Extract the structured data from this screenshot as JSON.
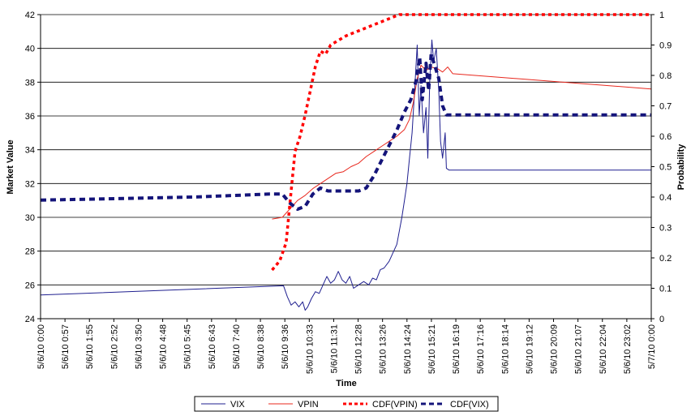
{
  "chart_data": {
    "type": "line",
    "xlabel": "Time",
    "ylabel_left": "Market Value",
    "ylabel_right": "Probability",
    "ylim_left": [
      24,
      42
    ],
    "ylim_right": [
      0,
      1
    ],
    "yticks_left": [
      "24",
      "26",
      "28",
      "30",
      "32",
      "34",
      "36",
      "38",
      "40",
      "42"
    ],
    "yticks_right": [
      "0",
      "0.1",
      "0.2",
      "0.3",
      "0.4",
      "0.5",
      "0.6",
      "0.7",
      "0.8",
      "0.9",
      "1"
    ],
    "x_tick_labels": [
      "5/6/10 0:00",
      "5/6/10 0:57",
      "5/6/10 1:55",
      "5/6/10 2:52",
      "5/6/10 3:50",
      "5/6/10 4:48",
      "5/6/10 5:45",
      "5/6/10 6:43",
      "5/6/10 7:40",
      "5/6/10 8:38",
      "5/6/10 9:36",
      "5/6/10 10:33",
      "5/6/10 11:31",
      "5/6/10 12:28",
      "5/6/10 13:26",
      "5/6/10 14:24",
      "5/6/10 15:21",
      "5/6/10 16:19",
      "5/6/10 17:16",
      "5/6/10 18:14",
      "5/6/10 19:12",
      "5/6/10 20:09",
      "5/6/10 21:07",
      "5/6/10 22:04",
      "5/6/10 23:02",
      "5/7/10 0:00"
    ],
    "x_unit": "hours since 5/6/10 0:00",
    "x_range": [
      0,
      24
    ],
    "grid": "horizontal",
    "legend_position": "bottom",
    "series": [
      {
        "name": "VIX",
        "axis": "left",
        "color": "#1f1f8f",
        "style": "solid",
        "points": [
          [
            0,
            25.4
          ],
          [
            9.55,
            25.95
          ],
          [
            9.7,
            25.3
          ],
          [
            9.85,
            24.8
          ],
          [
            10.0,
            25.0
          ],
          [
            10.15,
            24.7
          ],
          [
            10.3,
            25.0
          ],
          [
            10.4,
            24.5
          ],
          [
            10.5,
            24.7
          ],
          [
            10.65,
            25.2
          ],
          [
            10.8,
            25.6
          ],
          [
            10.95,
            25.5
          ],
          [
            11.1,
            26.0
          ],
          [
            11.25,
            26.5
          ],
          [
            11.4,
            26.1
          ],
          [
            11.55,
            26.3
          ],
          [
            11.7,
            26.8
          ],
          [
            11.85,
            26.3
          ],
          [
            12.0,
            26.1
          ],
          [
            12.15,
            26.5
          ],
          [
            12.3,
            25.8
          ],
          [
            12.5,
            26.0
          ],
          [
            12.7,
            26.2
          ],
          [
            12.9,
            26.0
          ],
          [
            13.05,
            26.4
          ],
          [
            13.2,
            26.3
          ],
          [
            13.35,
            26.9
          ],
          [
            13.5,
            27.0
          ],
          [
            13.7,
            27.4
          ],
          [
            13.85,
            27.9
          ],
          [
            14.0,
            28.4
          ],
          [
            14.1,
            29.2
          ],
          [
            14.2,
            30.0
          ],
          [
            14.3,
            31.0
          ],
          [
            14.4,
            32.0
          ],
          [
            14.5,
            33.5
          ],
          [
            14.6,
            35.0
          ],
          [
            14.7,
            37.5
          ],
          [
            14.8,
            40.2
          ],
          [
            14.88,
            36.0
          ],
          [
            14.95,
            37.8
          ],
          [
            15.05,
            35.0
          ],
          [
            15.15,
            36.5
          ],
          [
            15.22,
            33.5
          ],
          [
            15.3,
            38.3
          ],
          [
            15.38,
            40.5
          ],
          [
            15.45,
            39.2
          ],
          [
            15.55,
            40.0
          ],
          [
            15.65,
            37.5
          ],
          [
            15.72,
            34.5
          ],
          [
            15.8,
            33.5
          ],
          [
            15.9,
            35.0
          ],
          [
            15.95,
            32.9
          ],
          [
            16.05,
            32.8
          ],
          [
            24,
            32.8
          ]
        ]
      },
      {
        "name": "VPIN",
        "axis": "left",
        "color": "#e8281e",
        "style": "solid",
        "points": [
          [
            9.1,
            29.9
          ],
          [
            9.5,
            30.0
          ],
          [
            9.8,
            30.5
          ],
          [
            10.1,
            31.0
          ],
          [
            10.4,
            31.3
          ],
          [
            10.7,
            31.7
          ],
          [
            11.0,
            32.0
          ],
          [
            11.3,
            32.3
          ],
          [
            11.6,
            32.6
          ],
          [
            11.9,
            32.7
          ],
          [
            12.2,
            33.0
          ],
          [
            12.5,
            33.2
          ],
          [
            12.8,
            33.6
          ],
          [
            13.1,
            33.9
          ],
          [
            13.4,
            34.2
          ],
          [
            13.7,
            34.5
          ],
          [
            14.0,
            34.8
          ],
          [
            14.3,
            35.2
          ],
          [
            14.5,
            35.8
          ],
          [
            14.65,
            36.8
          ],
          [
            14.8,
            38.2
          ],
          [
            14.95,
            39.0
          ],
          [
            15.15,
            38.7
          ],
          [
            15.35,
            38.9
          ],
          [
            15.6,
            38.8
          ],
          [
            15.8,
            38.6
          ],
          [
            16.0,
            38.9
          ],
          [
            16.2,
            38.5
          ],
          [
            24,
            37.6
          ]
        ]
      },
      {
        "name": "CDF(VPIN)",
        "axis": "right",
        "color": "#ff0000",
        "style": "dashed",
        "points": [
          [
            9.1,
            0.16
          ],
          [
            9.4,
            0.19
          ],
          [
            9.65,
            0.25
          ],
          [
            9.8,
            0.38
          ],
          [
            10.0,
            0.55
          ],
          [
            10.2,
            0.6
          ],
          [
            10.4,
            0.67
          ],
          [
            10.6,
            0.75
          ],
          [
            10.8,
            0.83
          ],
          [
            11.0,
            0.88
          ],
          [
            11.2,
            0.87
          ],
          [
            11.4,
            0.9
          ],
          [
            11.6,
            0.91
          ],
          [
            11.8,
            0.92
          ],
          [
            12.0,
            0.93
          ],
          [
            12.3,
            0.94
          ],
          [
            12.6,
            0.95
          ],
          [
            12.9,
            0.96
          ],
          [
            13.2,
            0.97
          ],
          [
            13.5,
            0.98
          ],
          [
            13.8,
            0.99
          ],
          [
            14.1,
            1.0
          ],
          [
            24,
            1.0
          ]
        ]
      },
      {
        "name": "CDF(VIX)",
        "axis": "right",
        "color": "#14147a",
        "style": "dashed",
        "points": [
          [
            0,
            0.39
          ],
          [
            3,
            0.395
          ],
          [
            6,
            0.4
          ],
          [
            9.0,
            0.41
          ],
          [
            9.5,
            0.41
          ],
          [
            9.8,
            0.38
          ],
          [
            10.1,
            0.36
          ],
          [
            10.4,
            0.37
          ],
          [
            10.7,
            0.41
          ],
          [
            11.0,
            0.43
          ],
          [
            11.3,
            0.42
          ],
          [
            11.6,
            0.42
          ],
          [
            11.9,
            0.42
          ],
          [
            12.2,
            0.42
          ],
          [
            12.5,
            0.42
          ],
          [
            12.8,
            0.43
          ],
          [
            13.1,
            0.47
          ],
          [
            13.4,
            0.52
          ],
          [
            13.7,
            0.57
          ],
          [
            14.0,
            0.62
          ],
          [
            14.3,
            0.68
          ],
          [
            14.55,
            0.72
          ],
          [
            14.75,
            0.78
          ],
          [
            14.9,
            0.86
          ],
          [
            15.0,
            0.72
          ],
          [
            15.15,
            0.84
          ],
          [
            15.25,
            0.75
          ],
          [
            15.35,
            0.87
          ],
          [
            15.5,
            0.83
          ],
          [
            15.65,
            0.79
          ],
          [
            15.8,
            0.7
          ],
          [
            15.95,
            0.67
          ],
          [
            24,
            0.67
          ]
        ]
      }
    ]
  }
}
